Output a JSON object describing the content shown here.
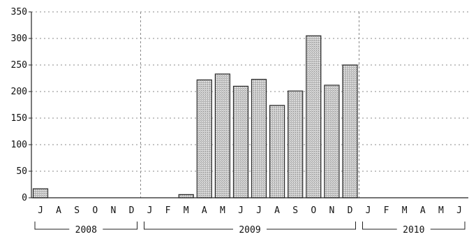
{
  "chart_data": {
    "type": "bar",
    "title": "",
    "xlabel": "",
    "ylabel": "",
    "ylim": [
      0,
      350
    ],
    "yticks": [
      0,
      50,
      100,
      150,
      200,
      250,
      300,
      350
    ],
    "grid": true,
    "legend": "none",
    "categories": [
      "J",
      "A",
      "S",
      "O",
      "N",
      "D",
      "J",
      "F",
      "M",
      "A",
      "M",
      "J",
      "J",
      "A",
      "S",
      "O",
      "N",
      "D",
      "J",
      "F",
      "M",
      "A",
      "M",
      "J"
    ],
    "values": [
      17,
      0,
      0,
      0,
      0,
      0,
      0,
      0,
      6,
      222,
      233,
      210,
      223,
      174,
      201,
      305,
      212,
      250,
      0,
      0,
      0,
      0,
      0,
      0
    ],
    "year_groups": [
      {
        "label": "2008",
        "start": 0,
        "end": 5
      },
      {
        "label": "2009",
        "start": 6,
        "end": 17
      },
      {
        "label": "2010",
        "start": 18,
        "end": 23
      }
    ],
    "colors": {
      "bar_fill": "#c4c4c4",
      "bar_stroke": "#2a2a2a",
      "grid": "#8a8a8a",
      "axis": "#222222"
    }
  }
}
